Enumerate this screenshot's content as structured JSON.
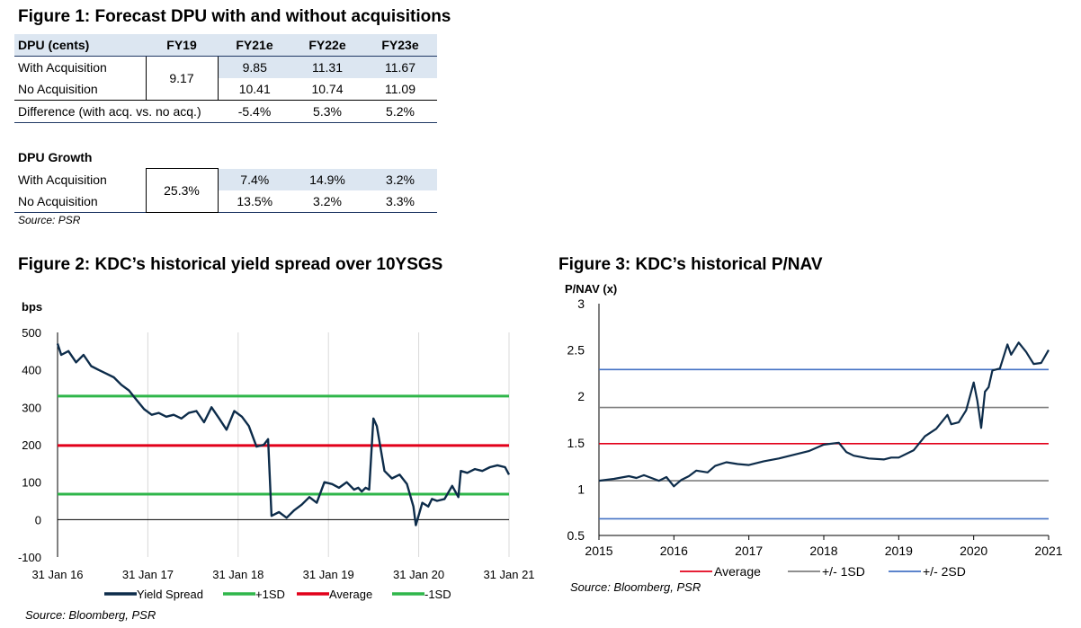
{
  "fig1": {
    "title": "Figure 1: Forecast DPU with and without acquisitions",
    "headers": [
      "DPU (cents)",
      "FY19",
      "FY21e",
      "FY22e",
      "FY23e"
    ],
    "with_label": "With Acquisition",
    "no_label": "No Acquisition",
    "fy19_dpu": "9.17",
    "with_dpu": [
      "9.85",
      "11.31",
      "11.67"
    ],
    "no_dpu": [
      "10.41",
      "10.74",
      "11.09"
    ],
    "diff_label": "Difference (with acq. vs. no acq.)",
    "diff": [
      "-5.4%",
      "5.3%",
      "5.2%"
    ],
    "growth_title": "DPU Growth",
    "fy19_growth": "25.3%",
    "with_growth": [
      "7.4%",
      "14.9%",
      "3.2%"
    ],
    "no_growth": [
      "13.5%",
      "3.2%",
      "3.3%"
    ],
    "source": "Source: PSR"
  },
  "fig2": {
    "title": "Figure 2: KDC’s historical yield spread over 10YSGS",
    "source": "Source: Bloomberg, PSR"
  },
  "fig3": {
    "title": "Figure 3: KDC’s historical P/NAV",
    "source": "Source: Bloomberg, PSR"
  },
  "chart_data": [
    {
      "type": "line",
      "ylabel": "bps",
      "ylim": [
        -100,
        500
      ],
      "yticks": [
        -100,
        0,
        100,
        200,
        300,
        400,
        500
      ],
      "xlim": [
        "2016-01-31",
        "2021-01-31"
      ],
      "xticks": [
        "31 Jan 16",
        "31 Jan 17",
        "31 Jan 18",
        "31 Jan 19",
        "31 Jan 20",
        "31 Jan 21"
      ],
      "grid": "vertical",
      "legend": "bottom",
      "series": [
        {
          "name": "Yield Spread",
          "color": "#0d2c4a",
          "x": [
            "2016-01-31",
            "2016-02-15",
            "2016-03-15",
            "2016-04-15",
            "2016-05-15",
            "2016-06-15",
            "2016-07-15",
            "2016-08-15",
            "2016-09-15",
            "2016-10-15",
            "2016-11-15",
            "2016-12-15",
            "2017-01-15",
            "2017-02-15",
            "2017-03-15",
            "2017-04-15",
            "2017-05-15",
            "2017-06-15",
            "2017-07-15",
            "2017-08-15",
            "2017-09-15",
            "2017-10-15",
            "2017-11-15",
            "2017-12-15",
            "2018-01-15",
            "2018-02-15",
            "2018-03-15",
            "2018-04-15",
            "2018-05-15",
            "2018-06-01",
            "2018-06-15",
            "2018-07-15",
            "2018-08-15",
            "2018-09-15",
            "2018-10-15",
            "2018-11-15",
            "2018-12-15",
            "2019-01-15",
            "2019-02-15",
            "2019-03-15",
            "2019-04-15",
            "2019-05-15",
            "2019-06-01",
            "2019-06-15",
            "2019-07-01",
            "2019-07-15",
            "2019-08-01",
            "2019-08-15",
            "2019-09-15",
            "2019-10-15",
            "2019-11-15",
            "2019-12-15",
            "2020-01-10",
            "2020-01-20",
            "2020-02-15",
            "2020-03-10",
            "2020-03-25",
            "2020-04-15",
            "2020-05-15",
            "2020-06-15",
            "2020-07-10",
            "2020-07-20",
            "2020-08-15",
            "2020-09-15",
            "2020-10-15",
            "2020-11-15",
            "2020-12-15",
            "2021-01-15",
            "2021-01-31"
          ],
          "y": [
            470,
            440,
            450,
            420,
            440,
            410,
            400,
            390,
            380,
            360,
            345,
            320,
            295,
            280,
            285,
            275,
            280,
            270,
            285,
            290,
            260,
            300,
            270,
            240,
            290,
            275,
            250,
            195,
            200,
            215,
            10,
            20,
            5,
            25,
            40,
            60,
            45,
            100,
            95,
            85,
            100,
            80,
            85,
            75,
            85,
            80,
            270,
            250,
            130,
            110,
            120,
            95,
            35,
            -15,
            45,
            35,
            55,
            50,
            55,
            90,
            60,
            130,
            125,
            135,
            130,
            140,
            145,
            140,
            120
          ]
        }
      ],
      "hlines": [
        {
          "name": "+1SD",
          "value": 330,
          "color": "#2fb64a"
        },
        {
          "name": "Average",
          "value": 198,
          "color": "#e2001a"
        },
        {
          "name": "-1SD",
          "value": 68,
          "color": "#2fb64a"
        }
      ]
    },
    {
      "type": "line",
      "ylabel": "P/NAV (x)",
      "ylim": [
        0.5,
        3
      ],
      "yticks": [
        "0.5",
        "1",
        "1.5",
        "2",
        "2.5",
        "3"
      ],
      "xlim": [
        2015,
        2021
      ],
      "xticks": [
        "2015",
        "2016",
        "2017",
        "2018",
        "2019",
        "2020",
        "2021"
      ],
      "grid": "none",
      "legend": "bottom",
      "series": [
        {
          "name": "P/NAV",
          "color": "#0d2c4a",
          "x": [
            2015.0,
            2015.2,
            2015.4,
            2015.5,
            2015.6,
            2015.8,
            2015.9,
            2016.0,
            2016.1,
            2016.2,
            2016.3,
            2016.45,
            2016.55,
            2016.7,
            2016.85,
            2017.0,
            2017.2,
            2017.4,
            2017.6,
            2017.8,
            2018.0,
            2018.2,
            2018.3,
            2018.4,
            2018.6,
            2018.8,
            2018.9,
            2019.0,
            2019.2,
            2019.35,
            2019.5,
            2019.65,
            2019.7,
            2019.8,
            2019.9,
            2020.0,
            2020.05,
            2020.1,
            2020.15,
            2020.2,
            2020.25,
            2020.35,
            2020.45,
            2020.5,
            2020.6,
            2020.7,
            2020.8,
            2020.9,
            2021.0
          ],
          "y": [
            1.09,
            1.11,
            1.14,
            1.12,
            1.15,
            1.09,
            1.13,
            1.03,
            1.1,
            1.14,
            1.2,
            1.18,
            1.25,
            1.29,
            1.27,
            1.26,
            1.3,
            1.33,
            1.37,
            1.41,
            1.48,
            1.5,
            1.4,
            1.36,
            1.33,
            1.32,
            1.34,
            1.34,
            1.42,
            1.57,
            1.65,
            1.8,
            1.7,
            1.72,
            1.85,
            2.15,
            1.95,
            1.66,
            2.05,
            2.1,
            2.28,
            2.3,
            2.56,
            2.45,
            2.58,
            2.48,
            2.35,
            2.36,
            2.5
          ]
        }
      ],
      "hlines": [
        {
          "name": "Average",
          "value": 1.49,
          "color": "#e2001a"
        },
        {
          "name": "+/- 1SD",
          "value": 1.88,
          "color": "#7f7f7f"
        },
        {
          "name": "+/- 1SD",
          "value": 1.09,
          "color": "#7f7f7f"
        },
        {
          "name": "+/- 2SD",
          "value": 2.29,
          "color": "#4472c4"
        },
        {
          "name": "+/- 2SD",
          "value": 0.68,
          "color": "#4472c4"
        }
      ],
      "legend_items": [
        {
          "name": "Average",
          "color": "#e2001a"
        },
        {
          "name": "+/- 1SD",
          "color": "#7f7f7f"
        },
        {
          "name": "+/- 2SD",
          "color": "#4472c4"
        }
      ]
    }
  ]
}
